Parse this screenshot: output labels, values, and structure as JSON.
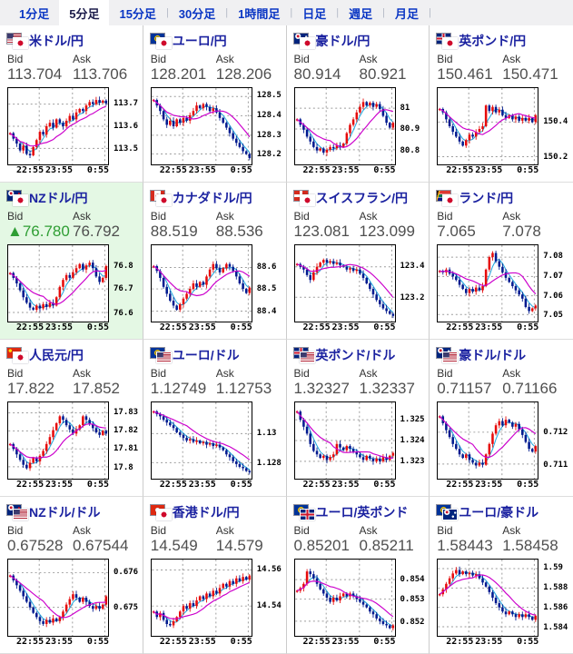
{
  "tabs": [
    {
      "id": "1min",
      "label": "1分足",
      "active": false,
      "sep": false
    },
    {
      "id": "5min",
      "label": "5分足",
      "active": true,
      "sep": false
    },
    {
      "id": "15min",
      "label": "15分足",
      "active": false,
      "sep": true
    },
    {
      "id": "30min",
      "label": "30分足",
      "active": false,
      "sep": true
    },
    {
      "id": "1hour",
      "label": "1時間足",
      "active": false,
      "sep": true
    },
    {
      "id": "daily",
      "label": "日足",
      "active": false,
      "sep": true
    },
    {
      "id": "weekly",
      "label": "週足",
      "active": false,
      "sep": true
    },
    {
      "id": "monthly",
      "label": "月足",
      "active": false,
      "sep": true
    }
  ],
  "labels": {
    "bid": "Bid",
    "ask": "Ask"
  },
  "colors": {
    "candle_up": "#e60b0b",
    "candle_down": "#001a8f",
    "ma_short": "#2aabdf",
    "ma_long": "#cc00cc",
    "link_blue": "#0a36c4",
    "pair_title": "#1b22a0",
    "bid_up_green": "#2f9e34",
    "highlight_bg": "#e4f8e4"
  },
  "panels": [
    {
      "id": "usd-jpy",
      "pair": "米ドル/円",
      "flags": [
        "us",
        "jp"
      ],
      "bid": "113.704",
      "ask": "113.706",
      "bid_prefix": "",
      "highlight": false,
      "chart": {
        "x_labels": [
          "22:55",
          "23:55",
          "0:55"
        ],
        "y_ticks": [
          {
            "label": "113.7",
            "f": 0.82
          },
          {
            "label": "113.6",
            "f": 0.5
          },
          {
            "label": "113.5",
            "f": 0.18
          }
        ],
        "series": [
          0.4,
          0.32,
          0.25,
          0.15,
          0.22,
          0.1,
          0.08,
          0.2,
          0.3,
          0.42,
          0.38,
          0.5,
          0.55,
          0.48,
          0.6,
          0.55,
          0.5,
          0.58,
          0.65,
          0.6,
          0.7,
          0.75,
          0.72,
          0.8,
          0.85,
          0.82,
          0.88,
          0.84,
          0.87,
          0.83
        ]
      }
    },
    {
      "id": "eur-jpy",
      "pair": "ユーロ/円",
      "flags": [
        "eu",
        "jp"
      ],
      "bid": "128.201",
      "ask": "128.206",
      "bid_prefix": "",
      "highlight": false,
      "chart": {
        "x_labels": [
          "22:55",
          "23:55",
          "0:55"
        ],
        "y_ticks": [
          {
            "label": "128.5",
            "f": 0.93
          },
          {
            "label": "128.4",
            "f": 0.65
          },
          {
            "label": "128.3",
            "f": 0.37
          },
          {
            "label": "128.2",
            "f": 0.1
          }
        ],
        "series": [
          0.88,
          0.8,
          0.72,
          0.6,
          0.52,
          0.58,
          0.5,
          0.6,
          0.55,
          0.62,
          0.58,
          0.66,
          0.72,
          0.8,
          0.76,
          0.82,
          0.78,
          0.72,
          0.76,
          0.7,
          0.62,
          0.55,
          0.48,
          0.4,
          0.32,
          0.26,
          0.2,
          0.14,
          0.1,
          0.04
        ]
      }
    },
    {
      "id": "aud-jpy",
      "pair": "豪ドル/円",
      "flags": [
        "au",
        "jp"
      ],
      "bid": "80.914",
      "ask": "80.921",
      "bid_prefix": "",
      "highlight": false,
      "chart": {
        "x_labels": [
          "22:55",
          "23:55",
          "0:55"
        ],
        "y_ticks": [
          {
            "label": "81",
            "f": 0.76
          },
          {
            "label": "80.9",
            "f": 0.46
          },
          {
            "label": "80.8",
            "f": 0.16
          }
        ],
        "series": [
          0.6,
          0.52,
          0.45,
          0.35,
          0.28,
          0.2,
          0.15,
          0.18,
          0.12,
          0.16,
          0.2,
          0.18,
          0.22,
          0.2,
          0.25,
          0.4,
          0.52,
          0.6,
          0.7,
          0.78,
          0.85,
          0.8,
          0.84,
          0.78,
          0.82,
          0.75,
          0.65,
          0.55,
          0.48,
          0.55
        ]
      }
    },
    {
      "id": "gbp-jpy",
      "pair": "英ポンド/円",
      "flags": [
        "gb",
        "jp"
      ],
      "bid": "150.461",
      "ask": "150.471",
      "bid_prefix": "",
      "highlight": false,
      "chart": {
        "x_labels": [
          "22:55",
          "23:55",
          "0:55"
        ],
        "y_ticks": [
          {
            "label": "150.4",
            "f": 0.56
          },
          {
            "label": "150.2",
            "f": 0.06
          }
        ],
        "series": [
          0.75,
          0.7,
          0.6,
          0.5,
          0.42,
          0.35,
          0.28,
          0.22,
          0.3,
          0.38,
          0.35,
          0.42,
          0.46,
          0.5,
          0.8,
          0.72,
          0.78,
          0.7,
          0.74,
          0.66,
          0.62,
          0.66,
          0.6,
          0.64,
          0.58,
          0.62,
          0.58,
          0.62,
          0.56,
          0.66
        ]
      }
    },
    {
      "id": "nzd-jpy",
      "pair": "NZドル/円",
      "flags": [
        "nz",
        "jp"
      ],
      "bid": "76.780",
      "ask": "76.792",
      "bid_prefix": "▲",
      "highlight": true,
      "chart": {
        "x_labels": [
          "22:55",
          "23:55",
          "0:55"
        ],
        "y_ticks": [
          {
            "label": "76.8",
            "f": 0.74
          },
          {
            "label": "76.7",
            "f": 0.42
          },
          {
            "label": "76.6",
            "f": 0.08
          }
        ],
        "series": [
          0.65,
          0.58,
          0.5,
          0.4,
          0.3,
          0.22,
          0.15,
          0.12,
          0.18,
          0.14,
          0.2,
          0.16,
          0.22,
          0.18,
          0.3,
          0.45,
          0.55,
          0.62,
          0.58,
          0.66,
          0.72,
          0.78,
          0.7,
          0.76,
          0.8,
          0.72,
          0.6,
          0.52,
          0.58,
          0.75
        ]
      }
    },
    {
      "id": "cad-jpy",
      "pair": "カナダドル/円",
      "flags": [
        "ca",
        "jp"
      ],
      "bid": "88.519",
      "ask": "88.536",
      "bid_prefix": "",
      "highlight": false,
      "chart": {
        "x_labels": [
          "22:55",
          "23:55",
          "0:55"
        ],
        "y_ticks": [
          {
            "label": "88.6",
            "f": 0.73
          },
          {
            "label": "88.5",
            "f": 0.42
          },
          {
            "label": "88.4",
            "f": 0.1
          }
        ],
        "series": [
          0.75,
          0.68,
          0.58,
          0.45,
          0.35,
          0.25,
          0.18,
          0.12,
          0.2,
          0.28,
          0.35,
          0.42,
          0.5,
          0.45,
          0.52,
          0.48,
          0.6,
          0.7,
          0.78,
          0.72,
          0.66,
          0.72,
          0.78,
          0.74,
          0.68,
          0.6,
          0.5,
          0.42,
          0.36,
          0.44
        ]
      }
    },
    {
      "id": "chf-jpy",
      "pair": "スイスフラン/円",
      "flags": [
        "ch",
        "jp"
      ],
      "bid": "123.081",
      "ask": "123.099",
      "bid_prefix": "",
      "highlight": false,
      "chart": {
        "x_labels": [
          "22:55",
          "23:55",
          "0:55"
        ],
        "y_ticks": [
          {
            "label": "123.4",
            "f": 0.74
          },
          {
            "label": "123.2",
            "f": 0.3
          }
        ],
        "series": [
          0.78,
          0.74,
          0.7,
          0.62,
          0.55,
          0.66,
          0.74,
          0.8,
          0.84,
          0.8,
          0.82,
          0.78,
          0.8,
          0.76,
          0.74,
          0.7,
          0.72,
          0.68,
          0.7,
          0.64,
          0.58,
          0.5,
          0.42,
          0.34,
          0.26,
          0.2,
          0.14,
          0.1,
          0.06,
          0.03
        ]
      }
    },
    {
      "id": "zar-jpy",
      "pair": "ランド/円",
      "flags": [
        "za",
        "jp"
      ],
      "bid": "7.065",
      "ask": "7.078",
      "bid_prefix": "",
      "highlight": false,
      "chart": {
        "x_labels": [
          "22:55",
          "23:55",
          "0:55"
        ],
        "y_ticks": [
          {
            "label": "7.08",
            "f": 0.88
          },
          {
            "label": "7.07",
            "f": 0.6
          },
          {
            "label": "7.06",
            "f": 0.32
          },
          {
            "label": "7.05",
            "f": 0.05
          }
        ],
        "series": [
          0.68,
          0.66,
          0.7,
          0.64,
          0.6,
          0.55,
          0.48,
          0.42,
          0.36,
          0.42,
          0.38,
          0.44,
          0.4,
          0.46,
          0.7,
          0.88,
          0.94,
          0.82,
          0.74,
          0.66,
          0.58,
          0.52,
          0.46,
          0.4,
          0.34,
          0.28,
          0.16,
          0.1,
          0.14,
          0.18
        ]
      }
    },
    {
      "id": "cny-jpy",
      "pair": "人民元/円",
      "flags": [
        "cn",
        "jp"
      ],
      "bid": "17.822",
      "ask": "17.852",
      "bid_prefix": "",
      "highlight": false,
      "chart": {
        "x_labels": [
          "22:55",
          "23:55",
          "0:55"
        ],
        "y_ticks": [
          {
            "label": "17.83",
            "f": 0.9
          },
          {
            "label": "17.82",
            "f": 0.64
          },
          {
            "label": "17.81",
            "f": 0.38
          },
          {
            "label": "17.8",
            "f": 0.12
          }
        ],
        "series": [
          0.45,
          0.38,
          0.3,
          0.22,
          0.15,
          0.1,
          0.18,
          0.25,
          0.2,
          0.28,
          0.35,
          0.45,
          0.55,
          0.65,
          0.75,
          0.85,
          0.8,
          0.72,
          0.66,
          0.6,
          0.66,
          0.72,
          0.85,
          0.8,
          0.74,
          0.68,
          0.62,
          0.58,
          0.64,
          0.6
        ]
      }
    },
    {
      "id": "eur-usd",
      "pair": "ユーロ/ドル",
      "flags": [
        "eu",
        "us"
      ],
      "bid": "1.12749",
      "ask": "1.12753",
      "bid_prefix": "",
      "highlight": false,
      "chart": {
        "x_labels": [
          "22:55",
          "23:55",
          "0:55"
        ],
        "y_ticks": [
          {
            "label": "1.13",
            "f": 0.6
          },
          {
            "label": "1.128",
            "f": 0.18
          }
        ],
        "series": [
          0.92,
          0.88,
          0.85,
          0.8,
          0.76,
          0.72,
          0.68,
          0.62,
          0.58,
          0.54,
          0.5,
          0.52,
          0.48,
          0.5,
          0.46,
          0.48,
          0.44,
          0.46,
          0.42,
          0.44,
          0.4,
          0.36,
          0.3,
          0.26,
          0.2,
          0.16,
          0.12,
          0.1,
          0.06,
          0.04
        ]
      }
    },
    {
      "id": "gbp-usd",
      "pair": "英ポンド/ドル",
      "flags": [
        "gb",
        "us"
      ],
      "bid": "1.32327",
      "ask": "1.32337",
      "bid_prefix": "",
      "highlight": false,
      "chart": {
        "x_labels": [
          "22:55",
          "23:55",
          "0:55"
        ],
        "y_ticks": [
          {
            "label": "1.325",
            "f": 0.8
          },
          {
            "label": "1.324",
            "f": 0.5
          },
          {
            "label": "1.323",
            "f": 0.2
          }
        ],
        "series": [
          0.92,
          0.8,
          0.7,
          0.6,
          0.45,
          0.35,
          0.3,
          0.25,
          0.28,
          0.22,
          0.26,
          0.3,
          0.45,
          0.4,
          0.36,
          0.42,
          0.38,
          0.34,
          0.3,
          0.26,
          0.22,
          0.28,
          0.24,
          0.2,
          0.24,
          0.2,
          0.26,
          0.22,
          0.28,
          0.32
        ]
      }
    },
    {
      "id": "aud-usd",
      "pair": "豪ドル/ドル",
      "flags": [
        "au",
        "us"
      ],
      "bid": "0.71157",
      "ask": "0.71166",
      "bid_prefix": "",
      "highlight": false,
      "chart": {
        "x_labels": [
          "22:55",
          "23:55",
          "0:55"
        ],
        "y_ticks": [
          {
            "label": "0.712",
            "f": 0.62
          },
          {
            "label": "0.711",
            "f": 0.16
          }
        ],
        "series": [
          0.85,
          0.75,
          0.65,
          0.55,
          0.45,
          0.38,
          0.3,
          0.25,
          0.3,
          0.22,
          0.18,
          0.14,
          0.18,
          0.15,
          0.3,
          0.45,
          0.6,
          0.72,
          0.78,
          0.72,
          0.8,
          0.76,
          0.7,
          0.74,
          0.66,
          0.58,
          0.48,
          0.38,
          0.34,
          0.42
        ]
      }
    },
    {
      "id": "nzd-usd",
      "pair": "NZドル/ドル",
      "flags": [
        "nz",
        "us"
      ],
      "bid": "0.67528",
      "ask": "0.67544",
      "bid_prefix": "",
      "highlight": false,
      "chart": {
        "x_labels": [
          "22:55",
          "23:55",
          "0:55"
        ],
        "y_ticks": [
          {
            "label": "0.676",
            "f": 0.86
          },
          {
            "label": "0.675",
            "f": 0.36
          }
        ],
        "series": [
          0.82,
          0.75,
          0.68,
          0.6,
          0.52,
          0.44,
          0.36,
          0.28,
          0.22,
          0.16,
          0.12,
          0.18,
          0.14,
          0.2,
          0.16,
          0.22,
          0.3,
          0.4,
          0.48,
          0.55,
          0.5,
          0.44,
          0.5,
          0.44,
          0.38,
          0.34,
          0.38,
          0.34,
          0.4,
          0.52
        ]
      }
    },
    {
      "id": "hkd-jpy",
      "pair": "香港ドル/円",
      "flags": [
        "hk",
        "jp"
      ],
      "bid": "14.549",
      "ask": "14.579",
      "bid_prefix": "",
      "highlight": false,
      "chart": {
        "x_labels": [
          "22:55",
          "23:55",
          "0:55"
        ],
        "y_ticks": [
          {
            "label": "14.56",
            "f": 0.9
          },
          {
            "label": "14.54",
            "f": 0.38
          }
        ],
        "series": [
          0.3,
          0.22,
          0.28,
          0.18,
          0.12,
          0.1,
          0.16,
          0.22,
          0.3,
          0.38,
          0.34,
          0.42,
          0.38,
          0.46,
          0.52,
          0.48,
          0.56,
          0.52,
          0.6,
          0.56,
          0.64,
          0.7,
          0.66,
          0.74,
          0.7,
          0.78,
          0.74,
          0.8,
          0.76,
          0.82
        ]
      }
    },
    {
      "id": "eur-gbp",
      "pair": "ユーロ/英ポンド",
      "flags": [
        "eu",
        "gb"
      ],
      "bid": "0.85201",
      "ask": "0.85211",
      "bid_prefix": "",
      "highlight": false,
      "chart": {
        "x_labels": [
          "22:55",
          "23:55",
          "0:55"
        ],
        "y_ticks": [
          {
            "label": "0.854",
            "f": 0.76
          },
          {
            "label": "0.853",
            "f": 0.48
          },
          {
            "label": "0.852",
            "f": 0.16
          }
        ],
        "series": [
          0.6,
          0.64,
          0.7,
          0.88,
          0.84,
          0.78,
          0.7,
          0.62,
          0.56,
          0.5,
          0.44,
          0.5,
          0.46,
          0.52,
          0.56,
          0.52,
          0.56,
          0.52,
          0.48,
          0.44,
          0.4,
          0.36,
          0.3,
          0.26,
          0.2,
          0.16,
          0.12,
          0.1,
          0.06,
          0.1
        ]
      }
    },
    {
      "id": "eur-aud",
      "pair": "ユーロ/豪ドル",
      "flags": [
        "eu",
        "au"
      ],
      "bid": "1.58443",
      "ask": "1.58458",
      "bid_prefix": "",
      "highlight": false,
      "chart": {
        "x_labels": [
          "22:55",
          "23:55",
          "0:55"
        ],
        "y_ticks": [
          {
            "label": "1.59",
            "f": 0.92
          },
          {
            "label": "1.588",
            "f": 0.64
          },
          {
            "label": "1.586",
            "f": 0.36
          },
          {
            "label": "1.584",
            "f": 0.08
          }
        ],
        "series": [
          0.55,
          0.62,
          0.7,
          0.78,
          0.85,
          0.9,
          0.84,
          0.88,
          0.84,
          0.86,
          0.82,
          0.84,
          0.78,
          0.72,
          0.66,
          0.58,
          0.5,
          0.42,
          0.36,
          0.3,
          0.26,
          0.3,
          0.26,
          0.22,
          0.26,
          0.22,
          0.26,
          0.22,
          0.18,
          0.24
        ]
      }
    }
  ]
}
